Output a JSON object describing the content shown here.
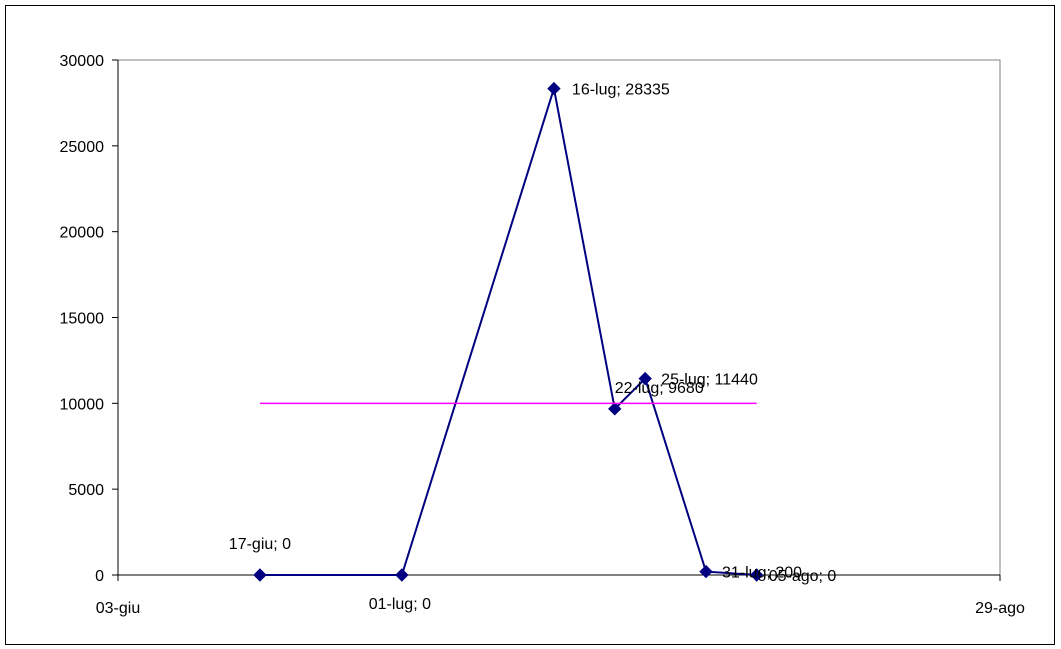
{
  "chart_data": {
    "type": "line",
    "title": "",
    "xlabel": "",
    "ylabel": "",
    "ylim": [
      0,
      30000
    ],
    "yticks": [
      0,
      5000,
      10000,
      15000,
      20000,
      25000,
      30000
    ],
    "xlim": [
      "03-giu",
      "29-ago"
    ],
    "xtick_labels": [
      "03-giu",
      "29-ago"
    ],
    "grid": false,
    "legend": "none",
    "series": [
      {
        "color": "#000080",
        "marker": "diamond",
        "points": [
          {
            "x": "17-giu",
            "y": 0,
            "label": "17-giu; 0"
          },
          {
            "x": "01-lug",
            "y": 0,
            "label": "01-lug; 0"
          },
          {
            "x": "16-lug",
            "y": 28335,
            "label": "16-lug; 28335"
          },
          {
            "x": "22-lug",
            "y": 9680,
            "label": "22-lug; 9680"
          },
          {
            "x": "25-lug",
            "y": 11440,
            "label": "25-lug; 11440"
          },
          {
            "x": "31-lug",
            "y": 200,
            "label": "31-lug; 200"
          },
          {
            "x": "05-ago",
            "y": 0,
            "label": "05-ago; 0"
          }
        ]
      },
      {
        "color": "#ff00ff",
        "marker": "none",
        "points": [
          {
            "x": "17-giu",
            "y": 10000
          },
          {
            "x": "05-ago",
            "y": 10000
          }
        ]
      }
    ]
  }
}
